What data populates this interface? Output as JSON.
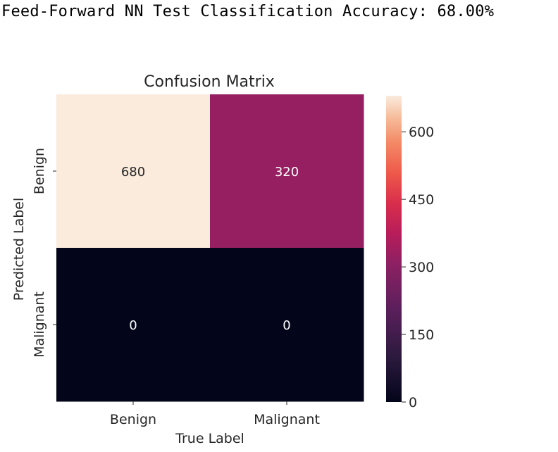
{
  "headline": "Feed-Forward NN Test Classification Accuracy: 68.00%",
  "chart_data": {
    "type": "heatmap",
    "title": "Confusion Matrix",
    "xlabel": "True Label",
    "ylabel": "Predicted Label",
    "x_categories": [
      "Benign",
      "Malignant"
    ],
    "y_categories": [
      "Benign",
      "Malignant"
    ],
    "values": [
      [
        680,
        320
      ],
      [
        0,
        0
      ]
    ],
    "annotations": [
      [
        "680",
        "320"
      ],
      [
        "0",
        "0"
      ]
    ],
    "colorbar": {
      "colormap": "rocket",
      "vmin": 0,
      "vmax": 680,
      "ticks": [
        0,
        150,
        300,
        450,
        600
      ],
      "tick_labels": [
        "0",
        "150",
        "300",
        "450",
        "600"
      ]
    }
  }
}
